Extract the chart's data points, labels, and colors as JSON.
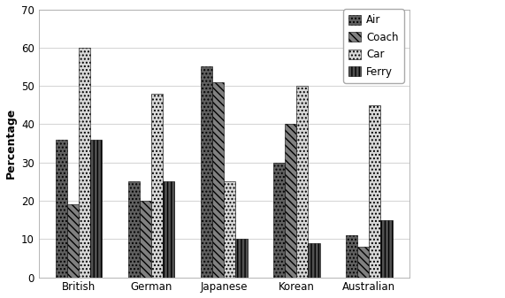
{
  "categories": [
    "British",
    "German",
    "Japanese",
    "Korean",
    "Australian"
  ],
  "series": {
    "Air": [
      36,
      25,
      55,
      30,
      11
    ],
    "Coach": [
      19,
      20,
      51,
      40,
      8
    ],
    "Car": [
      60,
      48,
      25,
      50,
      45
    ],
    "Ferry": [
      36,
      25,
      10,
      9,
      15
    ]
  },
  "series_order": [
    "Air",
    "Coach",
    "Car",
    "Ferry"
  ],
  "ylabel": "Percentage",
  "ylim": [
    0,
    70
  ],
  "yticks": [
    0,
    10,
    20,
    30,
    40,
    50,
    60,
    70
  ],
  "background_color": "#ffffff",
  "bar_colors": {
    "Air": "#606060",
    "Coach": "#808080",
    "Car": "#d8d8d8",
    "Ferry": "#505050"
  },
  "hatches": {
    "Air": "....",
    "Coach": "\\\\\\\\",
    "Car": "....",
    "Ferry": "||||"
  },
  "bar_width": 0.16,
  "legend_fontsize": 8.5
}
